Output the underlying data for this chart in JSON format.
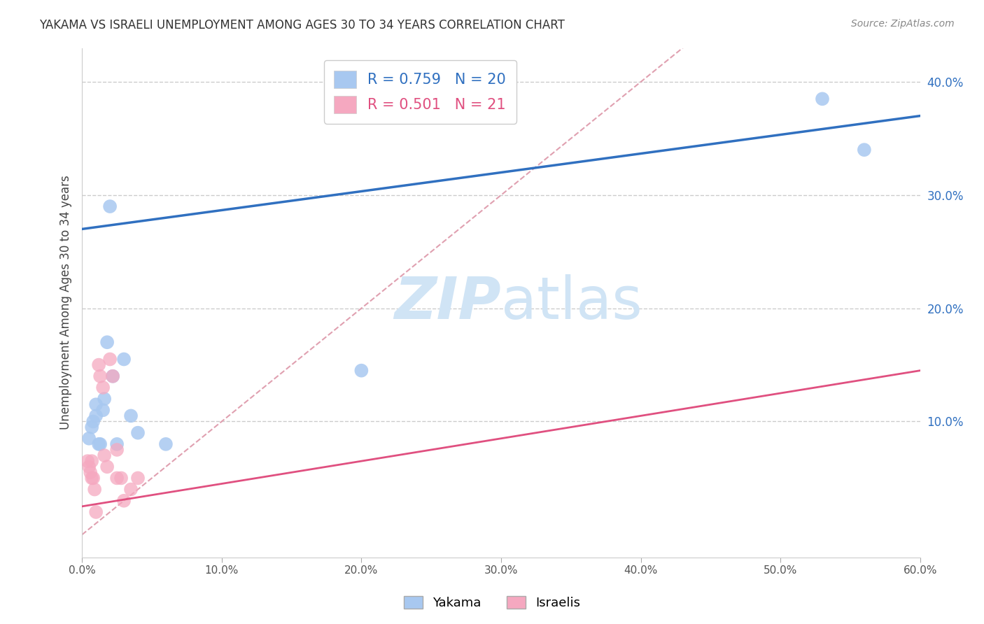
{
  "title": "YAKAMA VS ISRAELI UNEMPLOYMENT AMONG AGES 30 TO 34 YEARS CORRELATION CHART",
  "source": "Source: ZipAtlas.com",
  "ylabel": "Unemployment Among Ages 30 to 34 years",
  "xlabel": "",
  "xlim": [
    0.0,
    0.6
  ],
  "ylim": [
    -0.02,
    0.43
  ],
  "xticks": [
    0.0,
    0.1,
    0.2,
    0.3,
    0.4,
    0.5,
    0.6
  ],
  "yticks": [
    0.1,
    0.2,
    0.3,
    0.4
  ],
  "yakama_x": [
    0.005,
    0.007,
    0.008,
    0.01,
    0.01,
    0.012,
    0.013,
    0.015,
    0.016,
    0.018,
    0.02,
    0.022,
    0.025,
    0.03,
    0.035,
    0.04,
    0.06,
    0.2,
    0.53,
    0.56
  ],
  "yakama_y": [
    0.085,
    0.095,
    0.1,
    0.105,
    0.115,
    0.08,
    0.08,
    0.11,
    0.12,
    0.17,
    0.29,
    0.14,
    0.08,
    0.155,
    0.105,
    0.09,
    0.08,
    0.145,
    0.385,
    0.34
  ],
  "israeli_x": [
    0.004,
    0.005,
    0.006,
    0.007,
    0.007,
    0.008,
    0.009,
    0.01,
    0.012,
    0.013,
    0.015,
    0.016,
    0.018,
    0.02,
    0.022,
    0.025,
    0.025,
    0.028,
    0.03,
    0.035,
    0.04
  ],
  "israeli_y": [
    0.065,
    0.06,
    0.055,
    0.065,
    0.05,
    0.05,
    0.04,
    0.02,
    0.15,
    0.14,
    0.13,
    0.07,
    0.06,
    0.155,
    0.14,
    0.075,
    0.05,
    0.05,
    0.03,
    0.04,
    0.05
  ],
  "blue_line_x0": 0.0,
  "blue_line_y0": 0.27,
  "blue_line_x1": 0.6,
  "blue_line_y1": 0.37,
  "pink_line_x0": 0.0,
  "pink_line_y0": 0.025,
  "pink_line_x1": 0.6,
  "pink_line_y1": 0.145,
  "yakama_color": "#a8c8f0",
  "israeli_color": "#f5a8c0",
  "yakama_line_color": "#3070c0",
  "israeli_line_color": "#e05080",
  "diagonal_color": "#e0a0b0",
  "r_yakama": 0.759,
  "n_yakama": 20,
  "r_israeli": 0.501,
  "n_israeli": 21,
  "watermark_zip": "ZIP",
  "watermark_atlas": "atlas",
  "watermark_color": "#d0e4f5",
  "background_color": "#ffffff",
  "grid_color": "#cccccc"
}
